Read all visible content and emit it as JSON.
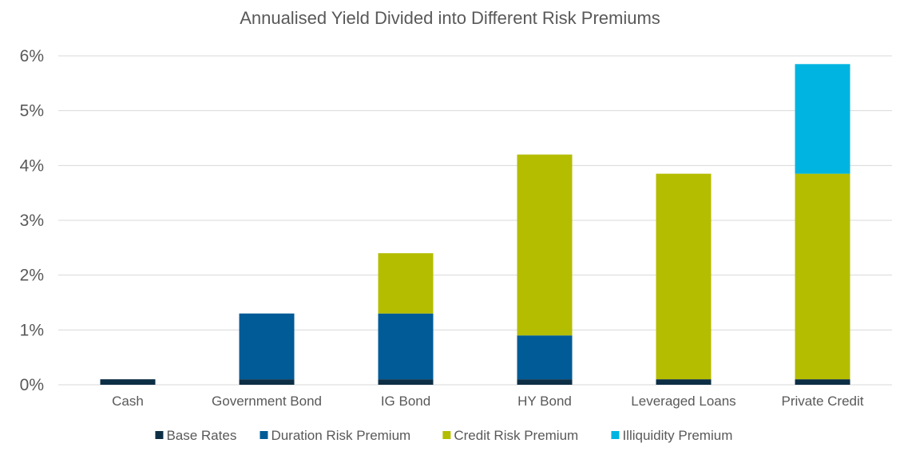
{
  "chart_data": {
    "type": "bar",
    "stacked": true,
    "title": "Annualised Yield Divided into Different Risk Premiums",
    "categories": [
      "Cash",
      "Government Bond",
      "IG Bond",
      "HY Bond",
      "Leveraged Loans",
      "Private Credit"
    ],
    "series": [
      {
        "name": "Base Rates",
        "color": "#0d2f45",
        "values": [
          0.1,
          0.1,
          0.1,
          0.1,
          0.1,
          0.1
        ]
      },
      {
        "name": "Duration Risk Premium",
        "color": "#005b96",
        "values": [
          0,
          1.2,
          1.2,
          0.8,
          0,
          0
        ]
      },
      {
        "name": "Credit Risk Premium",
        "color": "#b4bd00",
        "values": [
          0,
          0,
          1.1,
          3.3,
          3.75,
          3.75
        ]
      },
      {
        "name": "Illiquidity Premium",
        "color": "#00b4e1",
        "values": [
          0,
          0,
          0,
          0,
          0,
          2.0
        ]
      }
    ],
    "yticks": [
      "0%",
      "1%",
      "2%",
      "3%",
      "4%",
      "5%",
      "6%"
    ],
    "ylim": [
      0,
      6
    ],
    "grid": true,
    "legend_position": "bottom"
  }
}
